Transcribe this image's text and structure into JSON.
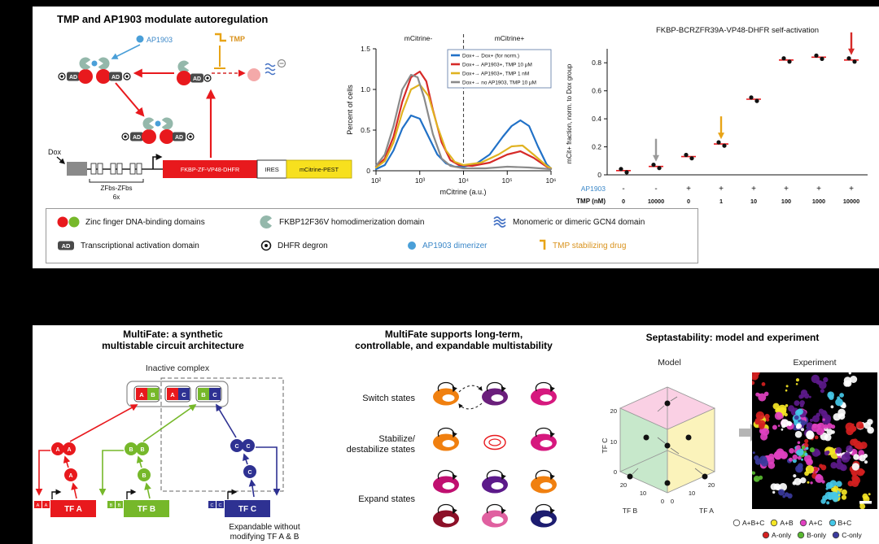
{
  "top_panel": {
    "title": "TMP and AP1903 modulate autoregulation",
    "circuit": {
      "ap1903_label": "AP1903",
      "tmp_label": "TMP",
      "dox_label": "Dox",
      "zfbs_label": "ZFbs-ZFbs",
      "repeat_label": "6x",
      "ad_label": "AD",
      "gene_fkbp": "FKBP-ZF-VP48-DHFR",
      "gene_ires": "IRES",
      "gene_mcitrine": "mCitrine-PEST"
    },
    "histogram": {
      "ylabel": "Percent of cells",
      "xlabel": "mCitrine (a.u.)",
      "yticks": [
        "1.5",
        "1.0",
        "0.5",
        "0"
      ],
      "xticks": [
        "10²",
        "10³",
        "10⁴",
        "10⁵",
        "10⁶"
      ],
      "neg_label": "mCitrine-",
      "pos_label": "mCitrine+",
      "legend": [
        "Dox+→ Dox+ (for norm.)",
        "Dox+→ AP1903+, TMP 10 μM",
        "Dox+→ AP1903+, TMP 1 nM",
        "Dox+→ no AP1903, TMP 10 μM"
      ]
    },
    "scatter": {
      "title": "FKBP-BCRZFR39A-VP48-DHFR self-activation",
      "ylabel": "mCit+ fraction, norm. to Dox group",
      "yticks": [
        "0.8",
        "0.6",
        "0.4",
        "0.2",
        "0"
      ],
      "ap1903_label": "AP1903",
      "ap1903_values": [
        "-",
        "-",
        "+",
        "+",
        "+",
        "+",
        "+",
        "+"
      ],
      "tmp_label": "TMP (nM)",
      "tmp_values": [
        "0",
        "10000",
        "0",
        "1",
        "10",
        "100",
        "1000",
        "10000"
      ]
    },
    "legend_box": {
      "zinc": "Zinc finger DNA-binding domains",
      "fkbp": "FKBP12F36V homodimerization domain",
      "gcn4": "Monomeric or dimeric GCN4 domain",
      "ad_icon": "AD",
      "ad": "Transcriptional activation domain",
      "dhfr": "DHFR degron",
      "ap1903": "AP1903 dimerizer",
      "tmp": "TMP stabilizing drug"
    }
  },
  "bottom_panel": {
    "col1": {
      "title1": "MultiFate: a synthetic",
      "title2": "multistable circuit architecture",
      "inactive_label": "Inactive complex",
      "caption1": "Expandable without",
      "caption2": "modifying TF A & B",
      "letter_a": "A",
      "letter_b": "B",
      "letter_c": "C",
      "tf_a": "TF A",
      "tf_b": "TF B",
      "tf_c": "TF C",
      "color_a": "#e8191d",
      "color_b": "#76b82a",
      "color_c": "#2e3192"
    },
    "col2": {
      "title1": "MultiFate supports long-term,",
      "title2": "controllable, and expandable multistability",
      "row1_label": "Switch states",
      "row2_label1": "Stabilize/",
      "row2_label2": "destabilize states",
      "row3_label": "Expand states"
    },
    "col3": {
      "title": "Septastability: model and experiment",
      "model_label": "Model",
      "experiment_label": "Experiment",
      "axis_a": "TF A",
      "axis_b": "TF B",
      "axis_c": "TF C",
      "t0": "0",
      "t10": "10",
      "t20": "20",
      "legend1": [
        {
          "label": "A+B+C",
          "color": "#ffffff"
        },
        {
          "label": "A+B",
          "color": "#f5e626"
        },
        {
          "label": "A+C",
          "color": "#e040c0"
        },
        {
          "label": "B+C",
          "color": "#45c8e8"
        }
      ],
      "legend2": [
        {
          "label": "A-only",
          "color": "#d42020"
        },
        {
          "label": "B-only",
          "color": "#58b830"
        },
        {
          "label": "C-only",
          "color": "#3a3a9c"
        }
      ]
    }
  },
  "chart_data": [
    {
      "type": "line",
      "title": "mCitrine flow cytometry distributions",
      "xlabel": "mCitrine (a.u.)",
      "ylabel": "Percent of cells",
      "x_scale": "log10",
      "xlim": [
        100,
        1000000
      ],
      "ylim": [
        0,
        1.5
      ],
      "threshold_x_log10": 4,
      "series": [
        {
          "name": "Dox+→ Dox+ (for norm.)",
          "color": "#2171c7",
          "x_log10": [
            2,
            2.2,
            2.4,
            2.6,
            2.8,
            3.0,
            3.2,
            3.4,
            3.6,
            3.8,
            4.0,
            4.3,
            4.6,
            4.9,
            5.1,
            5.3,
            5.5,
            5.7,
            5.9,
            6.0
          ],
          "y": [
            0.02,
            0.07,
            0.25,
            0.52,
            0.68,
            0.64,
            0.42,
            0.2,
            0.09,
            0.05,
            0.05,
            0.09,
            0.2,
            0.42,
            0.55,
            0.62,
            0.55,
            0.3,
            0.08,
            0.03
          ]
        },
        {
          "name": "Dox+→ AP1903+, TMP 10 μM",
          "color": "#d62a28",
          "x_log10": [
            2,
            2.2,
            2.4,
            2.6,
            2.8,
            3.0,
            3.15,
            3.3,
            3.5,
            3.7,
            3.9,
            4.2,
            4.6,
            5.0,
            5.3,
            5.6,
            5.9,
            6.0
          ],
          "y": [
            0.05,
            0.15,
            0.42,
            0.85,
            1.15,
            1.22,
            1.1,
            0.75,
            0.35,
            0.13,
            0.07,
            0.06,
            0.1,
            0.2,
            0.24,
            0.16,
            0.05,
            0.03
          ]
        },
        {
          "name": "Dox+→ AP1903+, TMP 1 nM",
          "color": "#e0b220",
          "x_log10": [
            2,
            2.2,
            2.4,
            2.6,
            2.8,
            3.0,
            3.2,
            3.4,
            3.6,
            3.8,
            4.0,
            4.4,
            4.8,
            5.1,
            5.35,
            5.6,
            5.9,
            6.0
          ],
          "y": [
            0.04,
            0.12,
            0.35,
            0.72,
            1.0,
            1.06,
            0.92,
            0.55,
            0.25,
            0.11,
            0.07,
            0.1,
            0.2,
            0.3,
            0.31,
            0.2,
            0.06,
            0.03
          ]
        },
        {
          "name": "Dox+→ no AP1903, TMP 10 μM",
          "color": "#8a8a8a",
          "x_log10": [
            2,
            2.2,
            2.4,
            2.6,
            2.8,
            2.95,
            3.1,
            3.3,
            3.5,
            3.7,
            4.0,
            4.5,
            5.0,
            5.5,
            6.0
          ],
          "y": [
            0.06,
            0.2,
            0.55,
            1.0,
            1.18,
            1.15,
            0.9,
            0.45,
            0.15,
            0.06,
            0.03,
            0.03,
            0.05,
            0.04,
            0.02
          ]
        }
      ]
    },
    {
      "type": "scatter",
      "title": "FKBP-BCRZFR39A-VP48-DHFR self-activation",
      "ylabel": "mCit+ fraction, norm. to Dox group",
      "ylim": [
        0,
        0.9
      ],
      "ap1903": [
        "-",
        "-",
        "+",
        "+",
        "+",
        "+",
        "+",
        "+"
      ],
      "tmp_nM": [
        0,
        10000,
        0,
        1,
        10,
        100,
        1000,
        10000
      ],
      "values": [
        0.03,
        0.06,
        0.13,
        0.22,
        0.54,
        0.82,
        0.84,
        0.82
      ],
      "arrows": [
        {
          "index": 1,
          "color": "#9a9a9a"
        },
        {
          "index": 3,
          "color": "#e8a417"
        },
        {
          "index": 7,
          "color": "#d62a28"
        }
      ]
    }
  ]
}
